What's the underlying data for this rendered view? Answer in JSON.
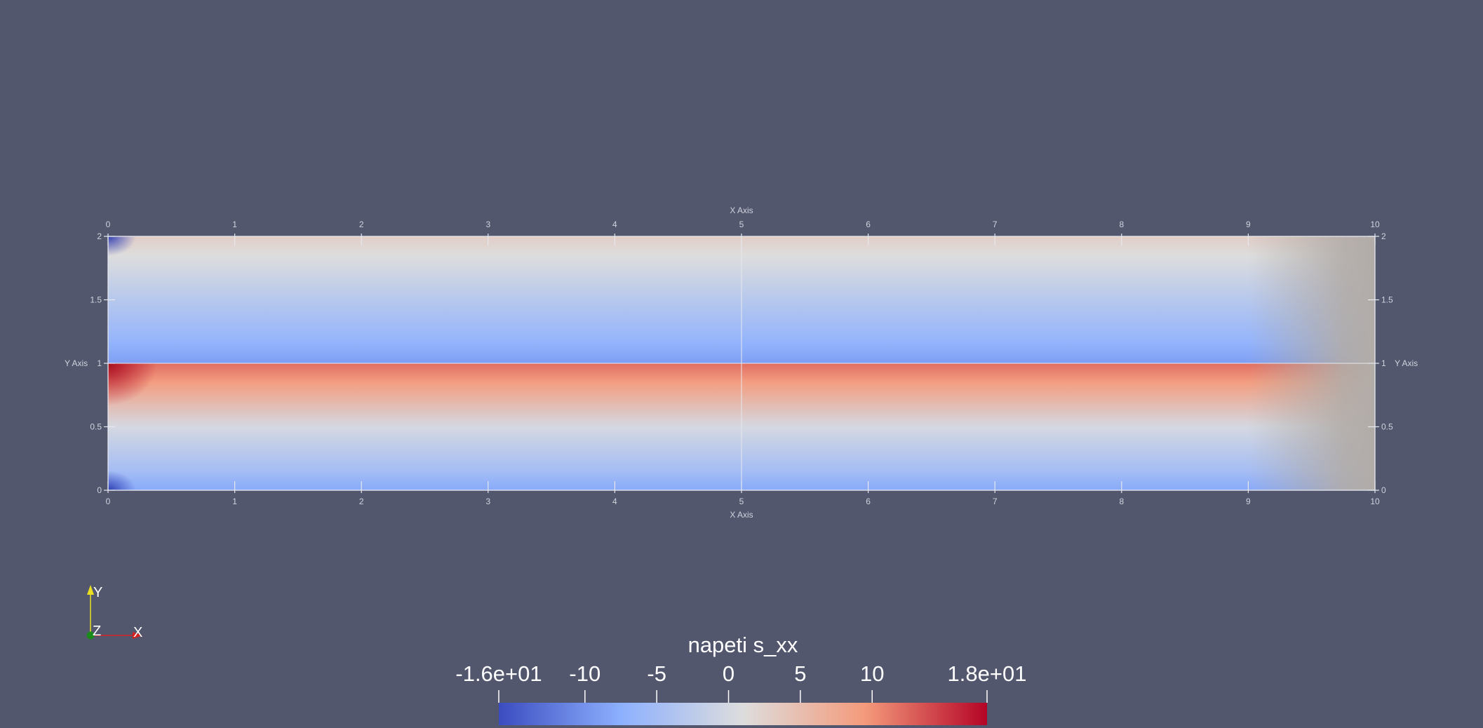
{
  "colors": {
    "background": "#52576e",
    "axis": "#e6e8ee",
    "x_axis_arrow": "#d62020",
    "y_axis_arrow": "#e8e020",
    "z_axis_dot": "#1a8a1a",
    "colormap": [
      "#3b4cc0",
      "#8db0fe",
      "#dddddd",
      "#f49a7b",
      "#b40426"
    ]
  },
  "grid_axes": {
    "x_title": "X Axis",
    "y_title": "Y Axis",
    "x_ticks": [
      "0",
      "1",
      "2",
      "3",
      "4",
      "5",
      "6",
      "7",
      "8",
      "9",
      "10"
    ],
    "y_ticks": [
      "0",
      "0.5",
      "1",
      "1.5",
      "2"
    ],
    "x_range": [
      0,
      10
    ],
    "y_range": [
      0,
      2
    ]
  },
  "orientation_axes": {
    "x_label": "X",
    "y_label": "Y",
    "z_label": "Z"
  },
  "color_legend": {
    "title": "napeti s_xx",
    "range": [
      -16,
      18
    ],
    "tick_values": [
      -16,
      -10,
      -5,
      0,
      5,
      10,
      18
    ],
    "tick_labels": [
      "-1.6e+01",
      "-10",
      "-5",
      "0",
      "5",
      "10",
      "1.8e+01"
    ]
  },
  "field": {
    "name": "s_xx",
    "range": [
      -16,
      18
    ],
    "upper_beam_profile": [
      {
        "y": 1.0,
        "value": -9
      },
      {
        "y": 1.15,
        "value": -7
      },
      {
        "y": 1.5,
        "value": -3
      },
      {
        "y": 1.85,
        "value": 1
      },
      {
        "y": 2.0,
        "value": 3
      }
    ],
    "lower_beam_profile": [
      {
        "y": 0.0,
        "value": -8
      },
      {
        "y": 0.15,
        "value": -5
      },
      {
        "y": 0.5,
        "value": 0
      },
      {
        "y": 0.85,
        "value": 9
      },
      {
        "y": 1.0,
        "value": 12
      }
    ]
  }
}
